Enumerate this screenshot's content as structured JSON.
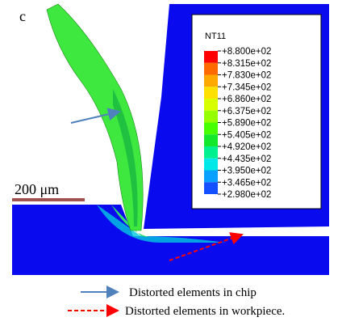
{
  "panel_label": "c",
  "contour_legend": {
    "title": "NT11",
    "labels": [
      "+8.800e+02",
      "+8.315e+02",
      "+7.830e+02",
      "+7.345e+02",
      "+6.860e+02",
      "+6.375e+02",
      "+5.890e+02",
      "+5.405e+02",
      "+4.920e+02",
      "+4.435e+02",
      "+3.950e+02",
      "+3.465e+02",
      "+2.980e+02"
    ],
    "colors": [
      "#ff0000",
      "#ff6a00",
      "#ffa800",
      "#ffe000",
      "#d8ff00",
      "#96ff00",
      "#46ff00",
      "#14e82c",
      "#00f090",
      "#00e8e8",
      "#0aa0ff",
      "#1450ff"
    ]
  },
  "scale_bar": "200 μm",
  "annotations": [
    "Distorted elements in chip",
    "Distorted elements in workpiece."
  ]
}
